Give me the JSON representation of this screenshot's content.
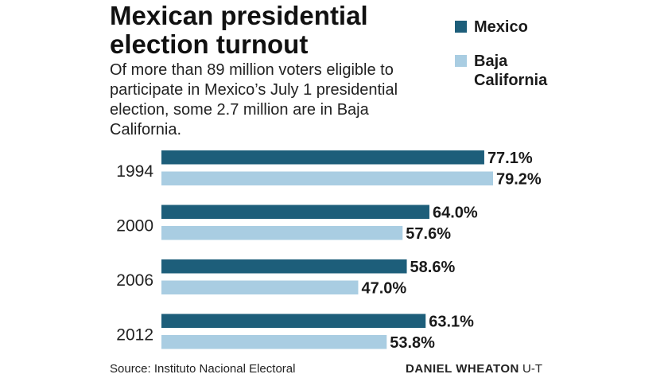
{
  "header": {
    "title_line1": "Mexican presidential",
    "title_line2": "election turnout",
    "subtitle": "Of more than 89 million voters eligible to participate in Mexico’s July 1 presidential election, some 2.7 million are in Baja California."
  },
  "legend": {
    "items": [
      {
        "label": "Mexico",
        "color": "#1d5e7a"
      },
      {
        "label": "Baja California",
        "color": "#a9cde2"
      }
    ]
  },
  "chart_data": {
    "type": "bar",
    "orientation": "horizontal",
    "categories": [
      "1994",
      "2000",
      "2006",
      "2012"
    ],
    "series": [
      {
        "name": "Mexico",
        "values": [
          77.1,
          64.0,
          58.6,
          63.1
        ],
        "labels": [
          "77.1%",
          "64.0%",
          "58.6%",
          "63.1%"
        ],
        "color": "#1d5e7a"
      },
      {
        "name": "Baja California",
        "values": [
          79.2,
          57.6,
          47.0,
          53.8
        ],
        "labels": [
          "79.2%",
          "57.6%",
          "47.0%",
          "53.8%"
        ],
        "color": "#a9cde2"
      }
    ],
    "title": "Mexican presidential election turnout",
    "xlabel": "",
    "ylabel": "",
    "xlim": [
      0,
      79.2
    ],
    "grid": false,
    "legend_position": "top-right"
  },
  "footer": {
    "source": "Source: Instituto Nacional Electoral",
    "credit_name": "DANIEL WHEATON",
    "credit_org": "U-T"
  }
}
